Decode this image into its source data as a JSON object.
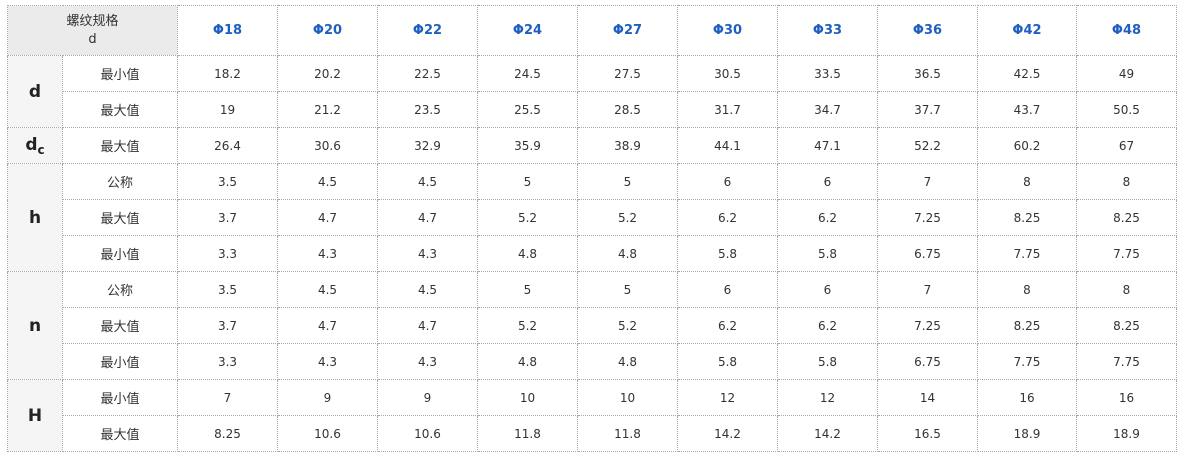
{
  "table": {
    "corner_line1": "螺纹规格",
    "corner_line2": "d",
    "columns": [
      "Φ18",
      "Φ20",
      "Φ22",
      "Φ24",
      "Φ27",
      "Φ30",
      "Φ33",
      "Φ36",
      "Φ42",
      "Φ48"
    ],
    "groups": [
      {
        "label": "d",
        "sub": "",
        "rows": [
          {
            "label": "最小值",
            "values": [
              "18.2",
              "20.2",
              "22.5",
              "24.5",
              "27.5",
              "30.5",
              "33.5",
              "36.5",
              "42.5",
              "49"
            ]
          },
          {
            "label": "最大值",
            "values": [
              "19",
              "21.2",
              "23.5",
              "25.5",
              "28.5",
              "31.7",
              "34.7",
              "37.7",
              "43.7",
              "50.5"
            ]
          }
        ]
      },
      {
        "label": "d",
        "sub": "c",
        "rows": [
          {
            "label": "最大值",
            "values": [
              "26.4",
              "30.6",
              "32.9",
              "35.9",
              "38.9",
              "44.1",
              "47.1",
              "52.2",
              "60.2",
              "67"
            ]
          }
        ]
      },
      {
        "label": "h",
        "sub": "",
        "rows": [
          {
            "label": "公称",
            "values": [
              "3.5",
              "4.5",
              "4.5",
              "5",
              "5",
              "6",
              "6",
              "7",
              "8",
              "8"
            ]
          },
          {
            "label": "最大值",
            "values": [
              "3.7",
              "4.7",
              "4.7",
              "5.2",
              "5.2",
              "6.2",
              "6.2",
              "7.25",
              "8.25",
              "8.25"
            ]
          },
          {
            "label": "最小值",
            "values": [
              "3.3",
              "4.3",
              "4.3",
              "4.8",
              "4.8",
              "5.8",
              "5.8",
              "6.75",
              "7.75",
              "7.75"
            ]
          }
        ]
      },
      {
        "label": "n",
        "sub": "",
        "rows": [
          {
            "label": "公称",
            "values": [
              "3.5",
              "4.5",
              "4.5",
              "5",
              "5",
              "6",
              "6",
              "7",
              "8",
              "8"
            ]
          },
          {
            "label": "最大值",
            "values": [
              "3.7",
              "4.7",
              "4.7",
              "5.2",
              "5.2",
              "6.2",
              "6.2",
              "7.25",
              "8.25",
              "8.25"
            ]
          },
          {
            "label": "最小值",
            "values": [
              "3.3",
              "4.3",
              "4.3",
              "4.8",
              "4.8",
              "5.8",
              "5.8",
              "6.75",
              "7.75",
              "7.75"
            ]
          }
        ]
      },
      {
        "label": "H",
        "sub": "",
        "rows": [
          {
            "label": "最小值",
            "values": [
              "7",
              "9",
              "9",
              "10",
              "10",
              "12",
              "12",
              "14",
              "16",
              "16"
            ]
          },
          {
            "label": "最大值",
            "values": [
              "8.25",
              "10.6",
              "10.6",
              "11.8",
              "11.8",
              "14.2",
              "14.2",
              "16.5",
              "18.9",
              "18.9"
            ]
          }
        ]
      }
    ]
  },
  "colors": {
    "header_text": "#1f5fbf",
    "corner_bg": "#ebebeb",
    "param_bg": "#f5f5f5",
    "border": "#a8a8a8"
  }
}
